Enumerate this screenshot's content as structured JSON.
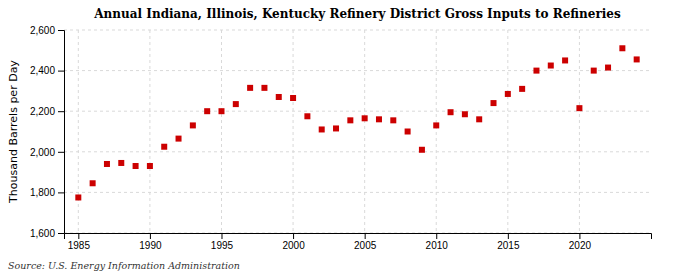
{
  "chart_data": {
    "type": "scatter",
    "title": "Annual Indiana, Illinois, Kentucky Refinery District Gross Inputs to Refineries",
    "ylabel": "Thousand Barrels per Day",
    "annotations": [
      "Source: U.S. Energy Information Administration"
    ],
    "x": [
      1985,
      1986,
      1987,
      1988,
      1989,
      1990,
      1991,
      1992,
      1993,
      1994,
      1995,
      1996,
      1997,
      1998,
      1999,
      2000,
      2001,
      2002,
      2003,
      2004,
      2005,
      2006,
      2007,
      2008,
      2009,
      2010,
      2011,
      2012,
      2013,
      2014,
      2015,
      2016,
      2017,
      2018,
      2019,
      2020,
      2021,
      2022,
      2023,
      2024
    ],
    "values": [
      1775,
      1845,
      1940,
      1945,
      1930,
      1930,
      2025,
      2065,
      2130,
      2200,
      2200,
      2235,
      2315,
      2315,
      2270,
      2265,
      2175,
      2110,
      2115,
      2155,
      2165,
      2160,
      2155,
      2100,
      2010,
      2130,
      2195,
      2185,
      2160,
      2240,
      2285,
      2310,
      2400,
      2425,
      2450,
      2215,
      2400,
      2415,
      2510,
      2455
    ],
    "color": "#cc0000",
    "marker": "square",
    "xlim": [
      1984,
      2025
    ],
    "ylim": [
      1600,
      2600
    ],
    "xticks": [
      1985,
      1990,
      1995,
      2000,
      2005,
      2010,
      2015,
      2020
    ],
    "yticks": [
      {
        "value": 1600,
        "label": "1,600"
      },
      {
        "value": 1800,
        "label": "1,800"
      },
      {
        "value": 2000,
        "label": "2,000"
      },
      {
        "value": 2200,
        "label": "2,200"
      },
      {
        "value": 2400,
        "label": "2,400"
      },
      {
        "value": 2600,
        "label": "2,600"
      }
    ],
    "grid": true
  }
}
